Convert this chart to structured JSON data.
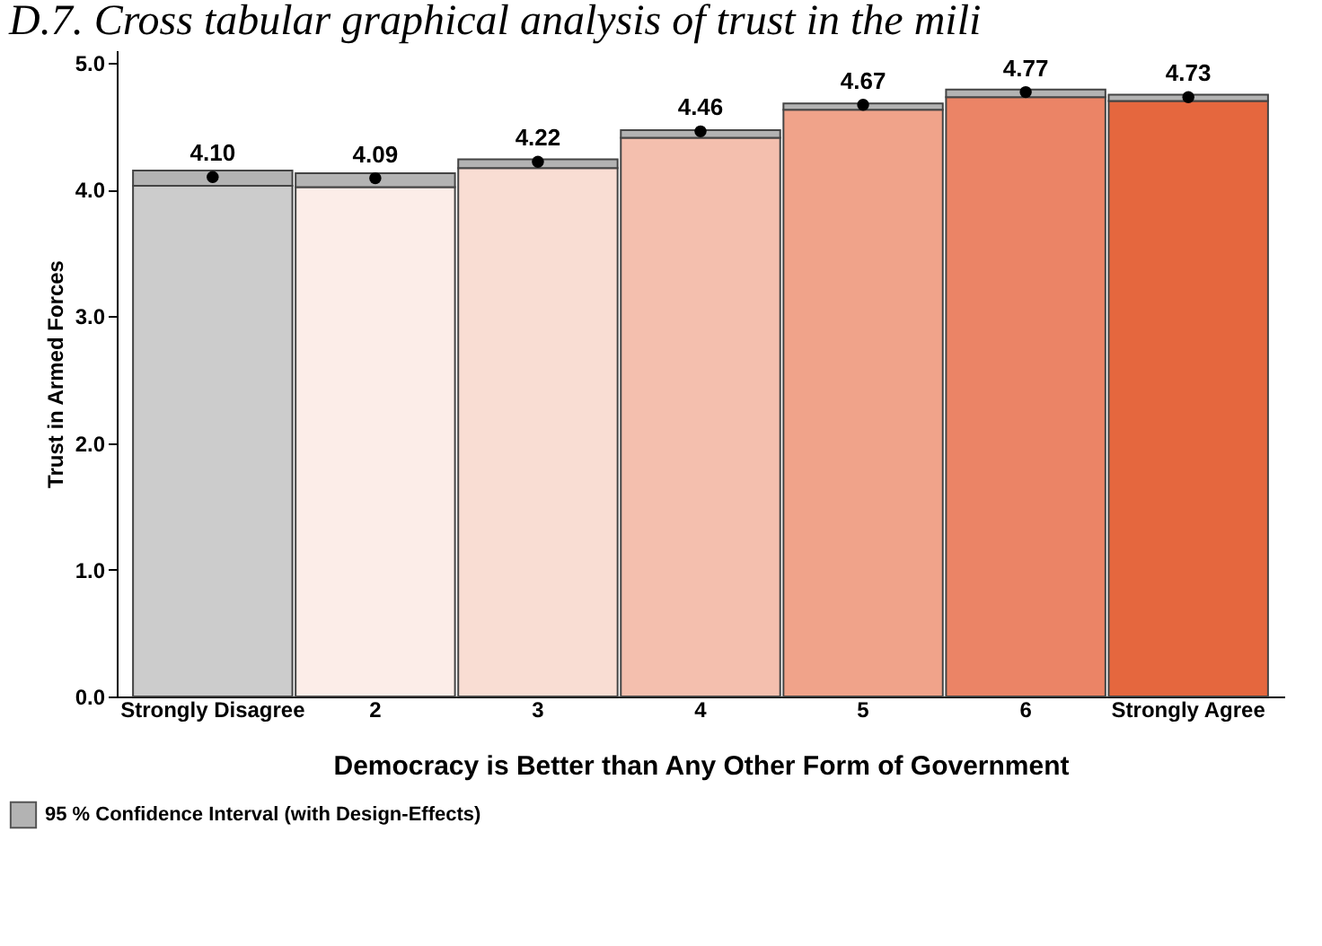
{
  "chart_data": {
    "type": "bar",
    "title": "D.7. Cross tabular graphical analysis of trust in the mili",
    "xlabel": "Democracy is Better than Any Other Form of Government",
    "ylabel": "Trust in Armed Forces",
    "categories": [
      "Strongly Disagree",
      "2",
      "3",
      "4",
      "5",
      "6",
      "Strongly Agree"
    ],
    "stacked": true,
    "series": [
      {
        "colors": [
          "#cccccc",
          "#fcede8",
          "#f9ddd3",
          "#f4bfae",
          "#f0a38a",
          "#eb8466",
          "#e5673e"
        ],
        "values": [
          4.03,
          4.02,
          4.17,
          4.41,
          4.63,
          4.73,
          4.7
        ]
      },
      {
        "name": "95 % Confidence Interval (with Design-Effects)",
        "color": "#b3b3b3",
        "values": [
          0.12,
          0.11,
          0.07,
          0.06,
          0.05,
          0.06,
          0.05
        ]
      },
      {
        "type": "scatter",
        "color": "#000000",
        "x": [
          "Strongly Disagree",
          "2",
          "3",
          "4",
          "5",
          "6",
          "Strongly Agree"
        ],
        "values": [
          4.1,
          4.09,
          4.22,
          4.46,
          4.67,
          4.77,
          4.73
        ],
        "value_labels": [
          "4.10",
          "4.09",
          "4.22",
          "4.46",
          "4.67",
          "4.77",
          "4.73"
        ]
      }
    ],
    "ylim": [
      0,
      5.1
    ],
    "yticks": [
      {
        "value": 0,
        "label": "0.0"
      },
      {
        "value": 1,
        "label": "1.0"
      },
      {
        "value": 2,
        "label": "2.0"
      },
      {
        "value": 3,
        "label": "3.0"
      },
      {
        "value": 4,
        "label": "4.0"
      },
      {
        "value": 5,
        "label": "5.0"
      }
    ],
    "legend": "bottom left",
    "grid": false,
    "marker": "circle"
  }
}
